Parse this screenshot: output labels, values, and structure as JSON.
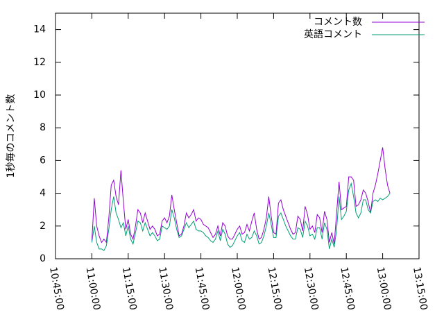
{
  "chart_data": {
    "type": "line",
    "ylabel": "1秒毎のコメント数",
    "x": [
      "11:00:00",
      "11:01:00",
      "11:02:00",
      "11:03:00",
      "11:04:00",
      "11:05:00",
      "11:06:00",
      "11:07:00",
      "11:08:00",
      "11:09:00",
      "11:10:00",
      "11:11:00",
      "11:12:00",
      "11:13:00",
      "11:14:00",
      "11:15:00",
      "11:16:00",
      "11:17:00",
      "11:18:00",
      "11:19:00",
      "11:20:00",
      "11:21:00",
      "11:22:00",
      "11:23:00",
      "11:24:00",
      "11:25:00",
      "11:26:00",
      "11:27:00",
      "11:28:00",
      "11:29:00",
      "11:30:00",
      "11:31:00",
      "11:32:00",
      "11:33:00",
      "11:34:00",
      "11:35:00",
      "11:36:00",
      "11:37:00",
      "11:38:00",
      "11:39:00",
      "11:40:00",
      "11:41:00",
      "11:42:00",
      "11:43:00",
      "11:44:00",
      "11:45:00",
      "11:46:00",
      "11:47:00",
      "11:48:00",
      "11:49:00",
      "11:50:00",
      "11:51:00",
      "11:52:00",
      "11:53:00",
      "11:54:00",
      "11:55:00",
      "11:56:00",
      "11:57:00",
      "11:58:00",
      "11:59:00",
      "12:00:00",
      "12:01:00",
      "12:02:00",
      "12:03:00",
      "12:04:00",
      "12:05:00",
      "12:06:00",
      "12:07:00",
      "12:08:00",
      "12:09:00",
      "12:10:00",
      "12:11:00",
      "12:12:00",
      "12:13:00",
      "12:14:00",
      "12:15:00",
      "12:16:00",
      "12:17:00",
      "12:18:00",
      "12:19:00",
      "12:20:00",
      "12:21:00",
      "12:22:00",
      "12:23:00",
      "12:24:00",
      "12:25:00",
      "12:26:00",
      "12:27:00",
      "12:28:00",
      "12:29:00",
      "12:30:00",
      "12:31:00",
      "12:32:00",
      "12:33:00",
      "12:34:00",
      "12:35:00",
      "12:36:00",
      "12:37:00",
      "12:38:00",
      "12:39:00",
      "12:40:00",
      "12:41:00",
      "12:42:00",
      "12:43:00",
      "12:44:00",
      "12:45:00",
      "12:46:00",
      "12:47:00",
      "12:48:00",
      "12:49:00",
      "12:50:00",
      "12:51:00",
      "12:52:00",
      "12:53:00",
      "12:54:00",
      "12:55:00",
      "12:56:00",
      "12:57:00",
      "12:58:00",
      "12:59:00",
      "13:00:00",
      "13:01:00",
      "13:02:00",
      "13:03:00"
    ],
    "series": [
      {
        "name": "コメント数",
        "color": "#9400d3",
        "values": [
          1.1,
          3.7,
          2.0,
          1.4,
          1.0,
          1.2,
          1.0,
          2.5,
          4.5,
          4.8,
          3.8,
          3.3,
          5.4,
          3.5,
          1.8,
          2.4,
          1.5,
          1.2,
          2.0,
          3.0,
          2.8,
          2.2,
          2.8,
          2.3,
          1.8,
          2.0,
          1.8,
          1.4,
          1.5,
          2.3,
          2.5,
          2.2,
          2.6,
          3.9,
          3.0,
          2.2,
          1.4,
          1.5,
          2.0,
          2.8,
          2.5,
          2.7,
          3.0,
          2.3,
          2.5,
          2.4,
          2.1,
          2.0,
          1.9,
          1.6,
          1.3,
          1.5,
          2.0,
          1.4,
          2.2,
          2.0,
          1.4,
          1.2,
          1.2,
          1.5,
          1.8,
          2.0,
          1.5,
          1.6,
          2.1,
          1.7,
          2.3,
          2.8,
          1.8,
          1.2,
          1.3,
          1.8,
          2.5,
          3.8,
          2.6,
          1.6,
          1.5,
          3.4,
          3.6,
          3.0,
          2.6,
          2.2,
          1.8,
          1.5,
          1.6,
          2.6,
          2.4,
          1.7,
          3.2,
          2.7,
          1.8,
          2.0,
          1.6,
          2.7,
          2.5,
          1.6,
          2.9,
          2.4,
          1.0,
          1.6,
          0.9,
          2.8,
          4.7,
          3.0,
          3.1,
          3.2,
          5.0,
          5.0,
          4.8,
          3.2,
          3.3,
          3.6,
          4.2,
          4.0,
          3.5,
          2.8,
          4.0,
          4.5,
          5.2,
          6.0,
          6.8,
          5.5,
          4.5,
          4.0
        ]
      },
      {
        "name": "英語コメント",
        "color": "#009e73",
        "values": [
          1.0,
          2.0,
          1.0,
          0.6,
          0.6,
          0.5,
          0.8,
          1.8,
          3.0,
          3.8,
          2.8,
          2.4,
          1.9,
          2.2,
          1.4,
          2.0,
          1.2,
          0.9,
          1.6,
          2.3,
          2.2,
          1.7,
          2.2,
          1.8,
          1.4,
          1.6,
          1.4,
          1.1,
          1.2,
          2.0,
          1.9,
          1.8,
          2.0,
          3.0,
          2.5,
          1.8,
          1.3,
          1.4,
          1.8,
          2.2,
          1.9,
          2.1,
          2.3,
          1.8,
          1.7,
          1.7,
          1.6,
          1.4,
          1.3,
          1.1,
          1.0,
          1.2,
          1.7,
          1.1,
          1.8,
          1.5,
          0.9,
          0.7,
          0.8,
          1.1,
          1.4,
          1.6,
          1.1,
          1.0,
          1.5,
          1.2,
          1.3,
          1.7,
          1.4,
          0.9,
          1.0,
          1.4,
          2.0,
          2.8,
          2.1,
          1.3,
          1.3,
          2.6,
          2.8,
          2.4,
          2.0,
          1.7,
          1.4,
          1.2,
          1.2,
          1.9,
          1.8,
          1.3,
          2.3,
          2.0,
          1.4,
          1.5,
          1.2,
          1.9,
          1.9,
          1.2,
          2.2,
          1.8,
          0.6,
          1.2,
          0.7,
          1.8,
          3.8,
          2.4,
          2.6,
          2.9,
          4.2,
          4.6,
          3.8,
          2.8,
          2.5,
          2.8,
          3.6,
          3.6,
          3.0,
          2.8,
          3.5,
          3.6,
          3.5,
          3.7,
          3.6,
          3.7,
          3.8,
          4.0
        ]
      }
    ],
    "xlim": [
      "10:45:00",
      "13:15:00"
    ],
    "xticks": [
      "10:45:00",
      "11:00:00",
      "11:15:00",
      "11:30:00",
      "11:45:00",
      "12:00:00",
      "12:15:00",
      "12:30:00",
      "12:45:00",
      "13:00:00",
      "13:15:00"
    ],
    "ylim": [
      0,
      15
    ],
    "yticks": [
      0,
      2,
      4,
      6,
      8,
      10,
      12,
      14
    ],
    "legend": "top-right"
  }
}
